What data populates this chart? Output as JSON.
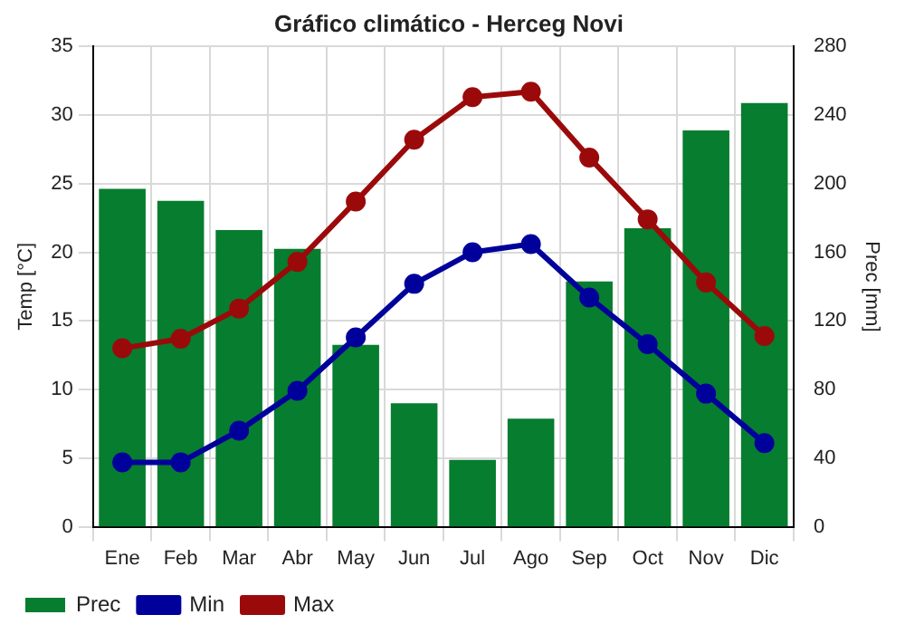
{
  "chart_data": {
    "type": "line",
    "title": "Gráfico climático - Herceg Novi",
    "categories": [
      "Ene",
      "Feb",
      "Mar",
      "Abr",
      "May",
      "Jun",
      "Jul",
      "Ago",
      "Sep",
      "Oct",
      "Nov",
      "Dic"
    ],
    "ylabel": "Temp [°C]",
    "y2label": "Prec [mm]",
    "series": [
      {
        "name": "Prec",
        "type": "bar",
        "axis": "y2",
        "color": "#067d2f",
        "values": [
          197,
          190,
          173,
          162,
          106,
          72,
          39,
          63,
          143,
          174,
          231,
          247
        ]
      },
      {
        "name": "Min",
        "color": "#00009b",
        "values": [
          4.7,
          4.7,
          7.0,
          9.9,
          13.8,
          17.7,
          20.0,
          20.6,
          16.7,
          13.3,
          9.7,
          6.1
        ]
      },
      {
        "name": "Max",
        "color": "#9b0a0a",
        "values": [
          13.0,
          13.7,
          15.9,
          19.3,
          23.7,
          28.2,
          31.3,
          31.7,
          26.9,
          22.4,
          17.8,
          13.9
        ]
      }
    ],
    "ylim": [
      0,
      35
    ],
    "yticks": [
      0,
      5,
      10,
      15,
      20,
      25,
      30,
      35
    ],
    "y2lim": [
      0,
      280
    ],
    "y2ticks": [
      0,
      40,
      80,
      120,
      160,
      200,
      240,
      280
    ],
    "grid": true,
    "legend": "bottom left",
    "marker": "circle",
    "line_style": "solid"
  }
}
